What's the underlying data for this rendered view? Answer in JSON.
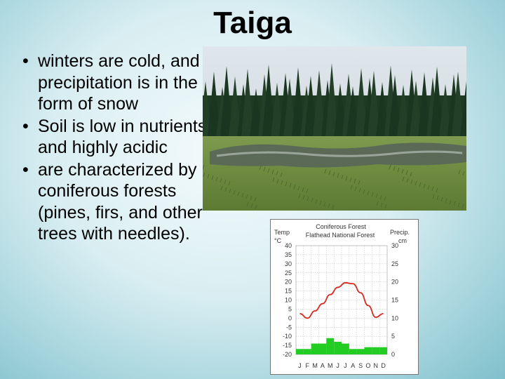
{
  "slide": {
    "title": "Taiga",
    "bullets": [
      "winters are cold, and precipitation is in the form of snow",
      "Soil is low in nutrients and highly acidic",
      "are characterized by coniferous forests (pines, firs, and other trees with needles)."
    ],
    "bullet_symbol": "•"
  },
  "chart_data": {
    "type": "bar+line",
    "title": "Coniferous Forest",
    "subtitle": "Flathead National Forest",
    "left_axis_label": [
      "Temp",
      "°C"
    ],
    "right_axis_label": [
      "Precip.",
      "cm"
    ],
    "months": [
      "J",
      "F",
      "M",
      "A",
      "M",
      "J",
      "J",
      "A",
      "S",
      "O",
      "N",
      "D"
    ],
    "temp_ticks": [
      "40",
      "35",
      "30",
      "25",
      "20",
      "15",
      "10",
      "5",
      "0",
      "-5",
      "-10",
      "-15",
      "-20"
    ],
    "temp_range": [
      -20,
      40
    ],
    "precip_ticks": [
      "30",
      "25",
      "20",
      "15",
      "10",
      "5",
      "0"
    ],
    "precip_range": [
      0,
      30
    ],
    "temperature_c": [
      2.5,
      0,
      4,
      8,
      13,
      17,
      19.5,
      19,
      14,
      7,
      0.5,
      2.5
    ],
    "precipitation_cm": [
      1.5,
      1.5,
      3,
      3,
      4.5,
      3.5,
      3,
      1.5,
      1.5,
      2,
      2,
      2
    ],
    "grid": true,
    "line_color": "#d42a1f",
    "bar_color": "#22cc22"
  }
}
